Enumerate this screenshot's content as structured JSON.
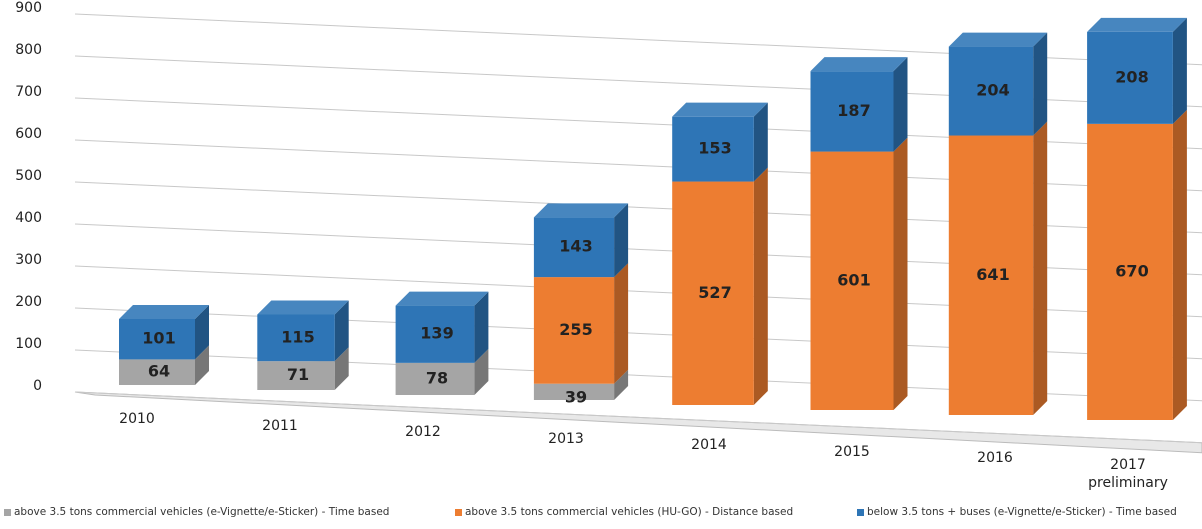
{
  "chart_data": {
    "type": "bar3d_stacked",
    "categories": [
      "2010",
      "2011",
      "2012",
      "2013",
      "2014",
      "2015",
      "2016",
      "2017 preliminary"
    ],
    "series": [
      {
        "name": "above 3.5 tons commercial vehicles (e-Vignette/e-Sticker) - Time based",
        "color": "#a5a5a5",
        "values": [
          64,
          71,
          78,
          39,
          null,
          null,
          null,
          null
        ]
      },
      {
        "name": "above 3.5 tons commercial vehicles (HU-GO) - Distance based",
        "color": "#ed7d31",
        "values": [
          null,
          null,
          null,
          255,
          527,
          601,
          641,
          670
        ]
      },
      {
        "name": "below 3.5 tons + buses (e-Vignette/e-Sticker) - Time based",
        "color": "#2e75b6",
        "values": [
          101,
          115,
          139,
          143,
          153,
          187,
          204,
          208
        ]
      }
    ],
    "ylim": [
      0,
      900
    ],
    "yticks": [
      0,
      100,
      200,
      300,
      400,
      500,
      600,
      700,
      800,
      900
    ],
    "grid": true
  }
}
